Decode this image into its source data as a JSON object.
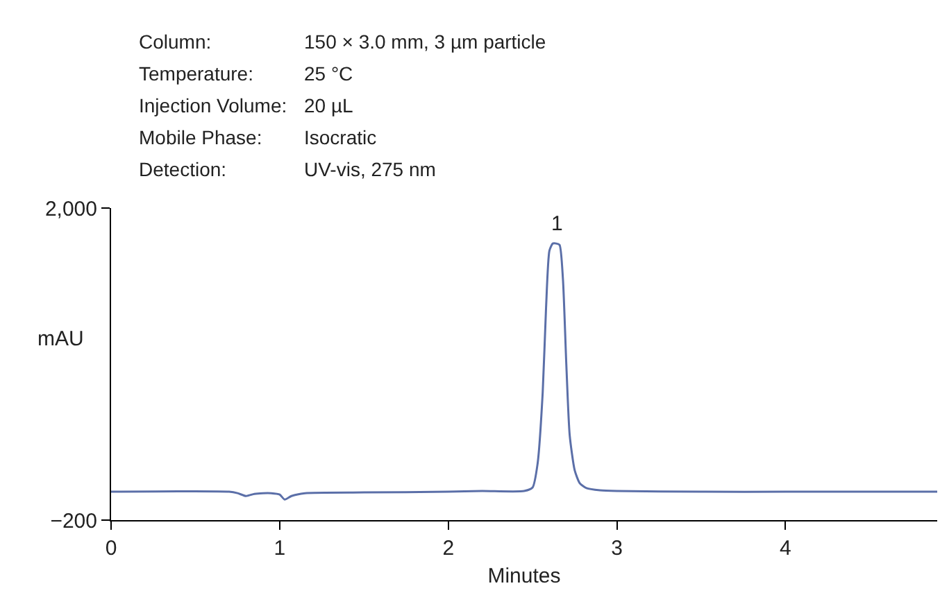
{
  "chart_data": {
    "type": "line",
    "xlabel": "Minutes",
    "ylabel": "mAU",
    "x": [
      0,
      0.7,
      0.75,
      0.8,
      0.85,
      0.9,
      0.95,
      1.0,
      1.03,
      1.07,
      1.15,
      1.5,
      2.0,
      2.2,
      2.45,
      2.5,
      2.53,
      2.56,
      2.58,
      2.6,
      2.62,
      2.64,
      2.66,
      2.68,
      2.7,
      2.72,
      2.75,
      2.78,
      2.82,
      2.9,
      3.0,
      3.5,
      4.0,
      4.9
    ],
    "series": [
      {
        "color": "#5b6fa8",
        "values": [
          0,
          0,
          -10,
          -30,
          -15,
          -10,
          -10,
          -20,
          -55,
          -30,
          -10,
          -5,
          0,
          5,
          5,
          30,
          200,
          700,
          1300,
          1700,
          1750,
          1750,
          1740,
          1500,
          900,
          400,
          150,
          60,
          25,
          10,
          5,
          0,
          0,
          0
        ]
      }
    ],
    "xlim": [
      0,
      4.9
    ],
    "xticks": [
      0,
      1,
      2,
      3,
      4
    ],
    "ylim": [
      -200,
      2000
    ],
    "yticks": [
      {
        "value": -200,
        "label": "−200"
      },
      {
        "value": 2000,
        "label": "2,000"
      }
    ],
    "legend": false,
    "marker": "none",
    "line_style": "solid",
    "annotations": [
      "Column: 150 × 3.0 mm, 3 µm particle",
      "Temperature: 25 °C",
      "Injection Volume: 20 µL",
      "Mobile Phase: Isocratic",
      "Detection: UV-vis, 275 nm",
      {
        "text": "1",
        "x": 2.64,
        "y": 1750
      }
    ]
  }
}
